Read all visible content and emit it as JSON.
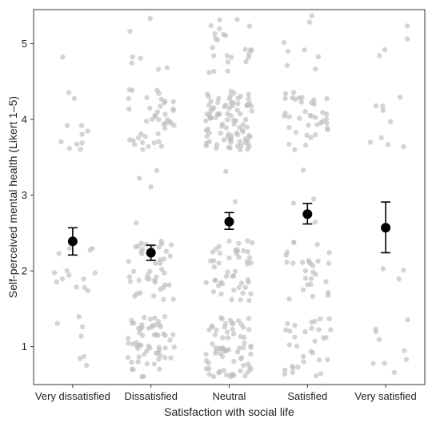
{
  "chart_data": {
    "type": "scatter",
    "subtype": "jitter-strip with mean and error bars",
    "title": "",
    "xlabel": "Satisfaction with social life",
    "ylabel": "Self-perceived mental health (Likert 1–5)",
    "categories": [
      "Very dissatisfied",
      "Dissatisfied",
      "Neutral",
      "Satisfied",
      "Very satisfied"
    ],
    "y_ticks": [
      1,
      2,
      3,
      4,
      5
    ],
    "ylim": [
      0.5,
      5.45
    ],
    "grid": false,
    "frame": "full box",
    "colors": {
      "points": "#bdbdbd",
      "summary": "#000000"
    },
    "summary": [
      {
        "category": "Very dissatisfied",
        "mean": 2.39,
        "lower": 2.21,
        "upper": 2.57
      },
      {
        "category": "Dissatisfied",
        "mean": 2.24,
        "lower": 2.14,
        "upper": 2.34
      },
      {
        "category": "Neutral",
        "mean": 2.65,
        "lower": 2.55,
        "upper": 2.77
      },
      {
        "category": "Satisfied",
        "mean": 2.75,
        "lower": 2.62,
        "upper": 2.89
      },
      {
        "category": "Very satisfied",
        "mean": 2.57,
        "lower": 2.24,
        "upper": 2.91
      }
    ],
    "point_counts": [
      {
        "category": "Very dissatisfied",
        "level_counts": {
          "1": 7,
          "2": 14,
          "3": 0,
          "4": 11,
          "5": 1
        }
      },
      {
        "category": "Dissatisfied",
        "level_counts": {
          "1": 60,
          "2": 42,
          "3": 4,
          "4": 42,
          "5": 7
        }
      },
      {
        "category": "Neutral",
        "level_counts": {
          "1": 70,
          "2": 48,
          "3": 2,
          "4": 90,
          "5": 24
        }
      },
      {
        "category": "Satisfied",
        "level_counts": {
          "1": 32,
          "2": 28,
          "3": 4,
          "4": 38,
          "5": 8
        }
      },
      {
        "category": "Very satisfied",
        "level_counts": {
          "1": 9,
          "2": 3,
          "3": 0,
          "4": 9,
          "5": 4
        }
      }
    ]
  }
}
